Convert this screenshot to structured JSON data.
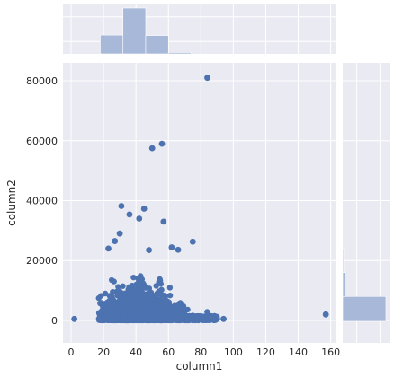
{
  "chart_data": {
    "type": "scatter",
    "title": "",
    "xlabel": "column1",
    "ylabel": "column2",
    "xlim": [
      -5,
      163
    ],
    "ylim": [
      -7500,
      86000
    ],
    "xticks": [
      0,
      20,
      40,
      60,
      80,
      100,
      120,
      140,
      160
    ],
    "yticks": [
      0,
      20000,
      40000,
      60000,
      80000
    ],
    "grid": true,
    "point_color": "#4c72b0",
    "hist_color": "#a8b8d8",
    "panel_color": "#eaeaf2",
    "outliers": [
      {
        "x": 84,
        "y": 81000
      },
      {
        "x": 56,
        "y": 59000
      },
      {
        "x": 50,
        "y": 57500
      },
      {
        "x": 31,
        "y": 38200
      },
      {
        "x": 45,
        "y": 37300
      },
      {
        "x": 36,
        "y": 35400
      },
      {
        "x": 42,
        "y": 34000
      },
      {
        "x": 57,
        "y": 33000
      },
      {
        "x": 30,
        "y": 29000
      },
      {
        "x": 27,
        "y": 26500
      },
      {
        "x": 75,
        "y": 26300
      },
      {
        "x": 23,
        "y": 24000
      },
      {
        "x": 62,
        "y": 24400
      },
      {
        "x": 48,
        "y": 23500
      },
      {
        "x": 66,
        "y": 23600
      },
      {
        "x": 2,
        "y": 500
      },
      {
        "x": 157,
        "y": 2000
      },
      {
        "x": 94,
        "y": 500
      },
      {
        "x": 90,
        "y": 500
      }
    ],
    "dense_cluster": {
      "x_range": [
        17,
        90
      ],
      "y_range": [
        -300,
        18000
      ],
      "center_x": 42,
      "center_y": 3000
    },
    "x_histogram": {
      "bins": [
        [
          18,
          32
        ],
        [
          32,
          46
        ],
        [
          46,
          60
        ],
        [
          60,
          74
        ],
        [
          74,
          88
        ]
      ],
      "relative_heights": [
        0.41,
        1.0,
        0.4,
        0.03,
        0.0
      ]
    },
    "y_histogram": {
      "bins": [
        [
          -300,
          8000
        ],
        [
          8000,
          16000
        ],
        [
          16000,
          24000
        ]
      ],
      "relative_widths": [
        1.0,
        0.05,
        0.01
      ]
    }
  }
}
